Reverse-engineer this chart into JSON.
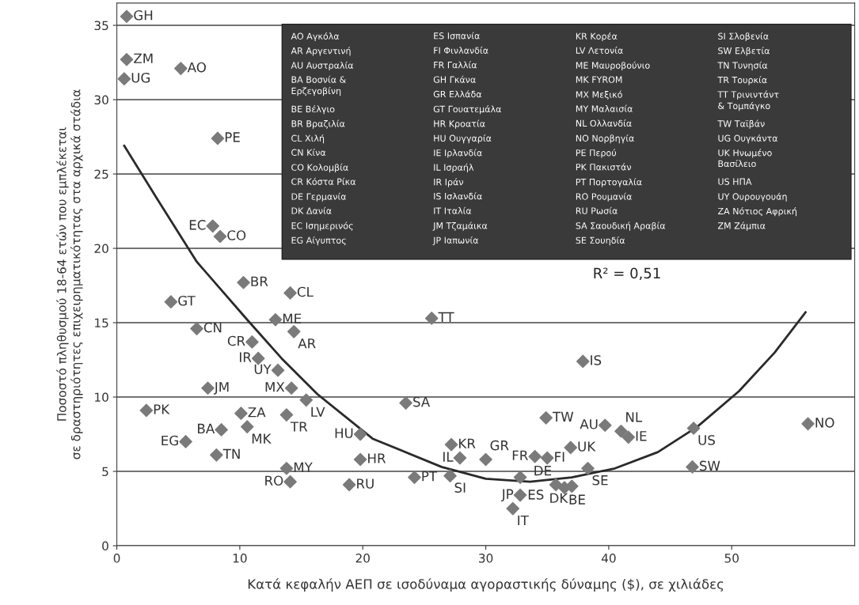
{
  "chart_data": {
    "type": "scatter",
    "xlabel": "Κατά κεφαλήν ΑΕΠ σε ισοδύναμα αγοραστικής δύναμης ($), σε χιλιάδες",
    "ylabel": "Ποσοστό πληθυσμού 18-64 ετών που εμπλέκεται\nσε δραστηριότητες επιχειρηματικότητας στα αρχικά στάδια",
    "xlim": [
      0,
      60
    ],
    "xticks": [
      0,
      10,
      20,
      30,
      40,
      50
    ],
    "ylim": [
      0,
      36.5
    ],
    "yticks": [
      0,
      5,
      10,
      15,
      20,
      25,
      30,
      35
    ],
    "grid": "y",
    "legend": false,
    "series": [
      {
        "color": "#7a7a7a",
        "marker": "diamond",
        "x": [
          0.8,
          0.8,
          0.6,
          5.2,
          8.2,
          7.8,
          8.4,
          10.3,
          14.1,
          4.4,
          12.9,
          25.6,
          14.4,
          6.5,
          11.0,
          11.5,
          13.1,
          7.4,
          14.2,
          37.9,
          15.4,
          23.5,
          2.4,
          10.1,
          13.8,
          34.9,
          39.7,
          41.0,
          41.6,
          46.9,
          56.2,
          8.5,
          10.6,
          19.8,
          5.6,
          27.2,
          36.9,
          34.0,
          35.0,
          27.9,
          30.0,
          8.1,
          19.8,
          13.8,
          38.3,
          46.8,
          24.2,
          27.1,
          32.8,
          35.7,
          36.4,
          37.0,
          14.1,
          18.9,
          32.8,
          32.2
        ],
        "values": [
          35.6,
          32.7,
          31.4,
          32.1,
          27.4,
          21.5,
          20.8,
          17.7,
          17.0,
          16.4,
          15.2,
          15.3,
          14.4,
          14.6,
          13.7,
          12.6,
          11.8,
          10.6,
          10.6,
          12.4,
          9.8,
          9.6,
          9.1,
          8.9,
          8.8,
          8.6,
          8.1,
          7.7,
          7.3,
          7.9,
          8.2,
          7.8,
          8.0,
          7.5,
          7.0,
          6.8,
          6.6,
          6.0,
          5.9,
          5.9,
          5.8,
          6.1,
          5.8,
          5.2,
          5.2,
          5.3,
          4.6,
          4.7,
          4.6,
          4.1,
          3.9,
          4.0,
          4.3,
          4.1,
          3.4,
          2.5
        ]
      },
      {
        "type": "line",
        "color": "#2a2a2a",
        "marker": "none",
        "line_style": "solid",
        "x": [
          0.6,
          3.3,
          6.5,
          10.6,
          13.4,
          16.3,
          20.8,
          26.4,
          30.0,
          33.6,
          37.0,
          40.5,
          44.0,
          47.2,
          50.6,
          53.5,
          56.0
        ],
        "values": [
          26.9,
          23.3,
          19.1,
          15.2,
          12.6,
          10.2,
          7.2,
          5.3,
          4.5,
          4.3,
          4.6,
          5.2,
          6.3,
          8.0,
          10.4,
          13.0,
          15.7
        ]
      }
    ],
    "annotations": [
      {
        "text": "GH",
        "x": 0.8,
        "y": 35.6
      },
      {
        "text": "ZM",
        "x": 0.8,
        "y": 32.7
      },
      {
        "text": "UG",
        "x": 0.6,
        "y": 31.4
      },
      {
        "text": "AO",
        "x": 5.2,
        "y": 32.1
      },
      {
        "text": "PE",
        "x": 8.2,
        "y": 27.4
      },
      {
        "text": "EC",
        "x": 7.8,
        "y": 21.5
      },
      {
        "text": "CO",
        "x": 8.4,
        "y": 20.8
      },
      {
        "text": "BR",
        "x": 10.3,
        "y": 17.7
      },
      {
        "text": "CL",
        "x": 14.1,
        "y": 17.0
      },
      {
        "text": "GT",
        "x": 4.4,
        "y": 16.4
      },
      {
        "text": "ME",
        "x": 12.9,
        "y": 15.2
      },
      {
        "text": "TT",
        "x": 25.6,
        "y": 15.3
      },
      {
        "text": "AR",
        "x": 14.4,
        "y": 14.4
      },
      {
        "text": "CN",
        "x": 6.5,
        "y": 14.6
      },
      {
        "text": "CR",
        "x": 11.0,
        "y": 13.7
      },
      {
        "text": "IR",
        "x": 11.5,
        "y": 12.6
      },
      {
        "text": "UY",
        "x": 13.1,
        "y": 11.8
      },
      {
        "text": "JM",
        "x": 7.4,
        "y": 10.6
      },
      {
        "text": "MX",
        "x": 14.2,
        "y": 10.6
      },
      {
        "text": "IS",
        "x": 37.9,
        "y": 12.4
      },
      {
        "text": "LV",
        "x": 15.4,
        "y": 9.8
      },
      {
        "text": "SA",
        "x": 23.5,
        "y": 9.6
      },
      {
        "text": "PK",
        "x": 2.4,
        "y": 9.1
      },
      {
        "text": "ZA",
        "x": 10.1,
        "y": 8.9
      },
      {
        "text": "TR",
        "x": 13.8,
        "y": 8.8
      },
      {
        "text": "TW",
        "x": 34.9,
        "y": 8.6
      },
      {
        "text": "AU",
        "x": 39.7,
        "y": 8.1
      },
      {
        "text": "NL",
        "x": 41.0,
        "y": 7.7
      },
      {
        "text": "IE",
        "x": 41.6,
        "y": 7.3
      },
      {
        "text": "US",
        "x": 46.9,
        "y": 7.9
      },
      {
        "text": "NO",
        "x": 56.2,
        "y": 8.2
      },
      {
        "text": "BA",
        "x": 8.5,
        "y": 7.8
      },
      {
        "text": "MK",
        "x": 10.6,
        "y": 8.0
      },
      {
        "text": "HU",
        "x": 19.8,
        "y": 7.5
      },
      {
        "text": "EG",
        "x": 5.6,
        "y": 7.0
      },
      {
        "text": "KR",
        "x": 27.2,
        "y": 6.8
      },
      {
        "text": "UK",
        "x": 36.9,
        "y": 6.6
      },
      {
        "text": "FR",
        "x": 34.0,
        "y": 6.0
      },
      {
        "text": "FI",
        "x": 35.0,
        "y": 5.9
      },
      {
        "text": "IL",
        "x": 27.9,
        "y": 5.9
      },
      {
        "text": "GR",
        "x": 30.0,
        "y": 5.8
      },
      {
        "text": "TN",
        "x": 8.1,
        "y": 6.1
      },
      {
        "text": "HR",
        "x": 19.8,
        "y": 5.8
      },
      {
        "text": "MY",
        "x": 13.8,
        "y": 5.2
      },
      {
        "text": "SE",
        "x": 38.3,
        "y": 5.2
      },
      {
        "text": "SW",
        "x": 46.8,
        "y": 5.3
      },
      {
        "text": "PT",
        "x": 24.2,
        "y": 4.6
      },
      {
        "text": "SI",
        "x": 27.1,
        "y": 4.7
      },
      {
        "text": "ES",
        "x": 32.8,
        "y": 4.6
      },
      {
        "text": "DE",
        "x": 35.7,
        "y": 4.1
      },
      {
        "text": "BE",
        "x": 36.4,
        "y": 3.9
      },
      {
        "text": "DK",
        "x": 37.0,
        "y": 4.0
      },
      {
        "text": "RO",
        "x": 14.1,
        "y": 4.3
      },
      {
        "text": "RU",
        "x": 18.9,
        "y": 4.1
      },
      {
        "text": "JP",
        "x": 32.8,
        "y": 3.4
      },
      {
        "text": "IT",
        "x": 32.2,
        "y": 2.5
      },
      "R² = 0,51",
      "AO Αγκόλα",
      "AR Αργεντινή",
      "AU Αυστραλία",
      "BA Βοσνία &\nΕρζεγοβίνη",
      "BE Βέλγιο",
      "BR Βραζιλία",
      "CL Χιλή",
      "CN Κίνα",
      "CO Κολομβία",
      "CR Κόστα Ρίκα",
      "DE Γερμανία",
      "DK Δανία",
      "EC Ισημερινός",
      "EG Αίγυπτος",
      "ES Ισπανία",
      "FI Φινλανδία",
      "FR Γαλλία",
      "GH Γκάνα",
      "GR Ελλάδα",
      "GT Γουατεμάλα",
      "HR Κροατία",
      "HU Ουγγαρία",
      "IE Ιρλανδία",
      "IL Ισραήλ",
      "IR Ιράν",
      "IS Ισλανδία",
      "IT Ιταλία",
      "JM Τζαμάικα",
      "JP Ιαπωνία",
      "KR Κορέα",
      "LV Λετονία",
      "ME Μαυροβούνιο",
      "MK FYROM",
      "MX Μεξικό",
      "MY Μαλαισία",
      "NL Ολλανδία",
      "NO Νορβηγία",
      "PE Περού",
      "PK Πακιστάν",
      "PT Πορτογαλία",
      "RO Ρουμανία",
      "RU Ρωσία",
      "SA Σαουδική Αραβία",
      "SE Σουηδία",
      "SI Σλοβενία",
      "SW Ελβετία",
      "TN Τυνησία",
      "TR Τουρκία",
      "TT Τρινιντάντ\n& Τομπάγκο",
      "TW Ταϊβάν",
      "UG Ουγκάντα",
      "UK Ηνωμένο\nΒασίλειο",
      "US ΗΠΑ",
      "UY Ουρουγουάη",
      "ZA Νότιος Αφρική",
      "ZM Ζάμπια"
    ]
  }
}
